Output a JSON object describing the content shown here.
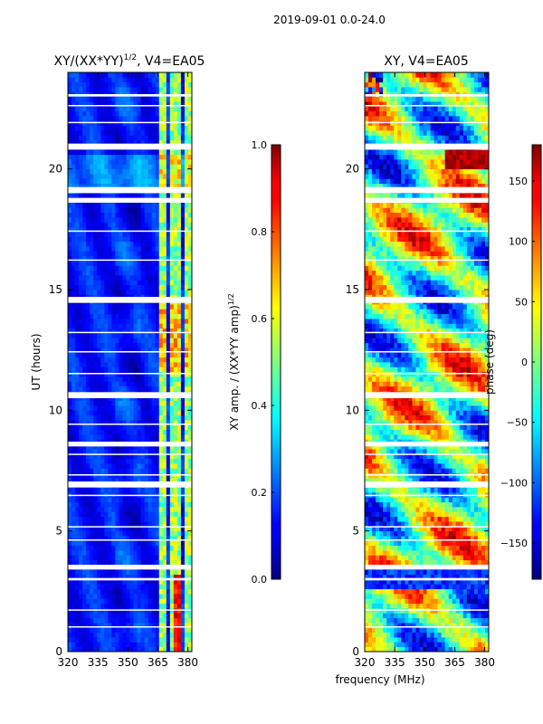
{
  "suptitle": "2019-09-01 0.0-24.0",
  "xlabel_shared": "frequency (MHz)",
  "chart_data": [
    {
      "type": "heatmap",
      "title_main": "XY/(XX*YY)",
      "title_sup": "1/2",
      "title_rest": ", V4=EA05",
      "ylabel": "UT (hours)",
      "xlim": [
        320,
        382
      ],
      "ylim": [
        0,
        24
      ],
      "xticks": [
        "320",
        "335",
        "350",
        "365",
        "380"
      ],
      "xtick_values": [
        320,
        335,
        350,
        365,
        380
      ],
      "yticks": [
        "0",
        "5",
        "10",
        "15",
        "20"
      ],
      "ytick_values": [
        0,
        5,
        10,
        15,
        20
      ],
      "colorbar": {
        "label_main": "XY amp. / (XX*YY amp)",
        "label_sup": "1/2",
        "range": [
          0.0,
          1.0
        ],
        "ticks": [
          "0.0",
          "0.2",
          "0.4",
          "0.6",
          "0.8",
          "1.0"
        ],
        "tick_values": [
          0.0,
          0.2,
          0.4,
          0.6,
          0.8,
          1.0
        ],
        "colormap": "jet"
      }
    },
    {
      "type": "heatmap",
      "title": "XY, V4=EA05",
      "xlim": [
        320,
        382
      ],
      "ylim": [
        0,
        24
      ],
      "xticks": [
        "320",
        "335",
        "350",
        "365",
        "380"
      ],
      "xtick_values": [
        320,
        335,
        350,
        365,
        380
      ],
      "yticks": [
        "0",
        "5",
        "10",
        "15",
        "20"
      ],
      "ytick_values": [
        0,
        5,
        10,
        15,
        20
      ],
      "colorbar": {
        "label": "phase (deg)",
        "range": [
          -180,
          180
        ],
        "ticks": [
          "−150",
          "−100",
          "−50",
          "0",
          "50",
          "100",
          "150"
        ],
        "tick_values": [
          -150,
          -100,
          -50,
          0,
          50,
          100,
          150
        ],
        "colormap": "jet"
      }
    }
  ],
  "flagged_gaps_hours": [
    [
      23.0,
      23.1
    ],
    [
      22.6,
      22.65
    ],
    [
      21.9,
      21.95
    ],
    [
      20.8,
      21.05
    ],
    [
      19.0,
      19.25
    ],
    [
      18.6,
      18.8
    ],
    [
      17.4,
      17.45
    ],
    [
      16.2,
      16.25
    ],
    [
      14.45,
      14.7
    ],
    [
      13.2,
      13.25
    ],
    [
      12.4,
      12.45
    ],
    [
      11.5,
      11.55
    ],
    [
      10.5,
      10.75
    ],
    [
      9.4,
      9.45
    ],
    [
      8.5,
      8.7
    ],
    [
      8.15,
      8.2
    ],
    [
      7.3,
      7.35
    ],
    [
      6.8,
      7.05
    ],
    [
      6.45,
      6.5
    ],
    [
      5.15,
      5.2
    ],
    [
      4.6,
      4.65
    ],
    [
      3.4,
      3.6
    ],
    [
      2.95,
      3.05
    ],
    [
      1.7,
      1.75
    ],
    [
      1.0,
      1.05
    ]
  ]
}
